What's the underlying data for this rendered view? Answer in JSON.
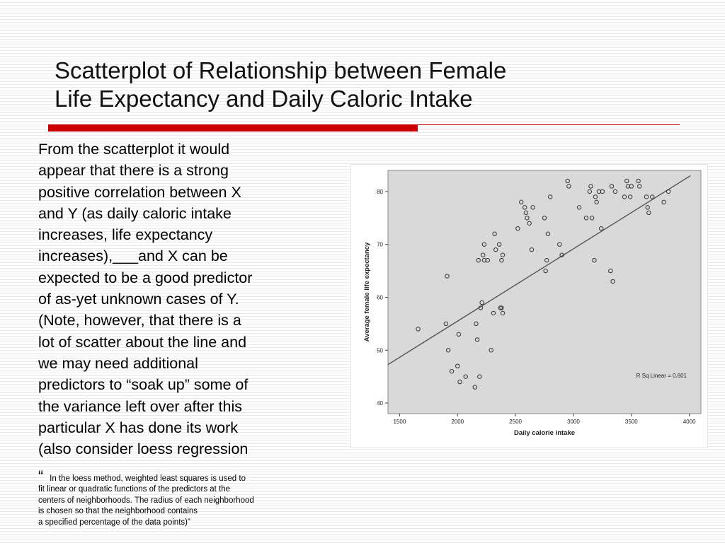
{
  "slide": {
    "title_lines": [
      "Scatterplot of Relationship between Female",
      "Life Expectancy and Daily Caloric Intake"
    ],
    "body_lines": [
      "From the scatterplot it would",
      "appear that there is a strong",
      "positive correlation between X",
      "and Y (as daily caloric intake",
      "increases, life expectancy",
      "increases),___and X can be",
      "expected to be a good predictor",
      "of as-yet unknown cases of Y.",
      "(Note, however, that there is a",
      "lot of scatter about the line and",
      "we may need additional",
      "predictors to “soak up” some of",
      "the variance left over after this",
      "particular X has done its work",
      "(also consider loess regression"
    ],
    "open_quote": "“",
    "note_lines": [
      "In the loess method, weighted least squares is used to",
      "fit linear or quadratic functions of the predictors at the",
      "centers of neighborhoods. The radius of each neighborhood",
      "is chosen so that the neighborhood contains",
      "a specified percentage of the data points)”"
    ],
    "accent_color": "#cc0000"
  },
  "chart_data": {
    "type": "scatter",
    "xlabel": "Daily calorie intake",
    "ylabel": "Average female life expectancy",
    "xlim": [
      1400,
      4100
    ],
    "ylim": [
      38,
      84
    ],
    "xticks": [
      1500,
      2000,
      2500,
      3000,
      3500,
      4000
    ],
    "yticks": [
      40,
      50,
      60,
      70,
      80
    ],
    "annotation": "R Sq Linear = 0.601",
    "fit_line": {
      "x": [
        1380,
        4010
      ],
      "y": [
        47.0,
        83.0
      ]
    },
    "point_color": "#333333",
    "line_color": "#555555",
    "plot_background": "#d9d9d9",
    "points": [
      [
        1660,
        54
      ],
      [
        1900,
        55
      ],
      [
        1910,
        64
      ],
      [
        1920,
        50
      ],
      [
        1950,
        46
      ],
      [
        2000,
        47
      ],
      [
        2010,
        53
      ],
      [
        2020,
        44
      ],
      [
        2070,
        45
      ],
      [
        2150,
        43
      ],
      [
        2160,
        55
      ],
      [
        2170,
        52
      ],
      [
        2180,
        67
      ],
      [
        2190,
        45
      ],
      [
        2200,
        58
      ],
      [
        2210,
        59
      ],
      [
        2220,
        68
      ],
      [
        2230,
        70
      ],
      [
        2230,
        67
      ],
      [
        2260,
        67
      ],
      [
        2290,
        50
      ],
      [
        2310,
        57
      ],
      [
        2320,
        72
      ],
      [
        2330,
        69
      ],
      [
        2360,
        70
      ],
      [
        2370,
        58
      ],
      [
        2380,
        58
      ],
      [
        2380,
        67
      ],
      [
        2390,
        57
      ],
      [
        2390,
        68
      ],
      [
        2520,
        73
      ],
      [
        2550,
        78
      ],
      [
        2580,
        77
      ],
      [
        2590,
        76
      ],
      [
        2600,
        75
      ],
      [
        2620,
        74
      ],
      [
        2640,
        69
      ],
      [
        2650,
        77
      ],
      [
        2750,
        75
      ],
      [
        2760,
        65
      ],
      [
        2770,
        67
      ],
      [
        2780,
        72
      ],
      [
        2800,
        79
      ],
      [
        2880,
        70
      ],
      [
        2900,
        68
      ],
      [
        2950,
        82
      ],
      [
        2960,
        81
      ],
      [
        3050,
        77
      ],
      [
        3110,
        75
      ],
      [
        3140,
        80
      ],
      [
        3150,
        81
      ],
      [
        3160,
        75
      ],
      [
        3180,
        67
      ],
      [
        3190,
        79
      ],
      [
        3200,
        78
      ],
      [
        3220,
        80
      ],
      [
        3240,
        73
      ],
      [
        3250,
        80
      ],
      [
        3320,
        65
      ],
      [
        3330,
        81
      ],
      [
        3340,
        63
      ],
      [
        3360,
        80
      ],
      [
        3440,
        79
      ],
      [
        3460,
        82
      ],
      [
        3470,
        81
      ],
      [
        3490,
        79
      ],
      [
        3500,
        81
      ],
      [
        3560,
        82
      ],
      [
        3570,
        81
      ],
      [
        3630,
        79
      ],
      [
        3640,
        77
      ],
      [
        3650,
        76
      ],
      [
        3680,
        79
      ],
      [
        3780,
        78
      ],
      [
        3820,
        80
      ]
    ]
  }
}
